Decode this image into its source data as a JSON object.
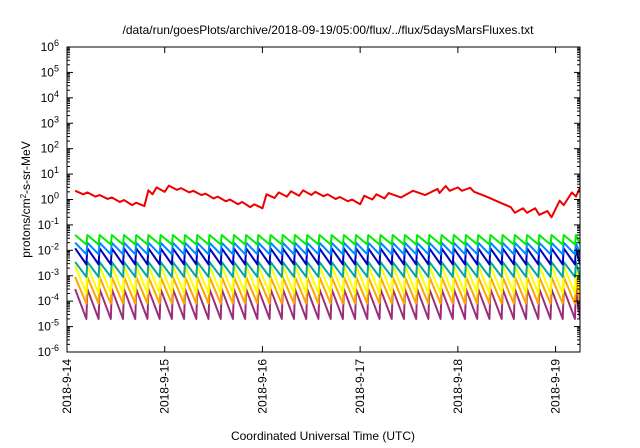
{
  "chart_data": {
    "type": "line",
    "title": "/data/run/goesPlots/archive/2018-09-19/05:00/flux/../flux/5daysMarsFluxes.txt",
    "xlabel": "Coordinated Universal Time (UTC)",
    "ylabel_parts": {
      "prefix": "protons/cm",
      "sup": "2",
      "suffix": "-s-sr-MeV"
    },
    "y_scale": "log",
    "ylim": [
      1e-06,
      1000000.0
    ],
    "y_ticks": [
      {
        "base": "10",
        "exp": "-6",
        "value": 1e-06
      },
      {
        "base": "10",
        "exp": "-5",
        "value": 1e-05
      },
      {
        "base": "10",
        "exp": "-4",
        "value": 0.0001
      },
      {
        "base": "10",
        "exp": "-3",
        "value": 0.001
      },
      {
        "base": "10",
        "exp": "-2",
        "value": 0.01
      },
      {
        "base": "10",
        "exp": "-1",
        "value": 0.1
      },
      {
        "base": "10",
        "exp": "0",
        "value": 1
      },
      {
        "base": "10",
        "exp": "1",
        "value": 10
      },
      {
        "base": "10",
        "exp": "2",
        "value": 100
      },
      {
        "base": "10",
        "exp": "3",
        "value": 1000
      },
      {
        "base": "10",
        "exp": "4",
        "value": 10000
      },
      {
        "base": "10",
        "exp": "5",
        "value": 100000
      },
      {
        "base": "10",
        "exp": "6",
        "value": 1000000
      }
    ],
    "xlim": [
      "2018-09-14T00:00",
      "2018-09-19T06:00"
    ],
    "x_ticks": [
      {
        "label": "2018-9-14",
        "date": "2018-09-14T00:00"
      },
      {
        "label": "2018-9-15",
        "date": "2018-09-15T00:00"
      },
      {
        "label": "2018-9-16",
        "date": "2018-09-16T00:00"
      },
      {
        "label": "2018-9-17",
        "date": "2018-09-17T00:00"
      },
      {
        "label": "2018-9-18",
        "date": "2018-09-18T00:00"
      },
      {
        "label": "2018-9-19",
        "date": "2018-09-19T00:00"
      }
    ],
    "grid": false,
    "legend": "none",
    "series": [
      {
        "color": "#ee0000",
        "x": [
          "2018-09-14T02:00",
          "2018-09-14T04:00",
          "2018-09-14T05:00",
          "2018-09-14T07:00",
          "2018-09-14T08:00",
          "2018-09-14T10:00",
          "2018-09-14T11:00",
          "2018-09-14T13:00",
          "2018-09-14T14:00",
          "2018-09-14T16:00",
          "2018-09-14T17:00",
          "2018-09-14T19:00",
          "2018-09-14T20:00",
          "2018-09-14T21:00",
          "2018-09-14T22:00",
          "2018-09-15T00:00",
          "2018-09-15T01:00",
          "2018-09-15T03:00",
          "2018-09-15T04:00",
          "2018-09-15T06:00",
          "2018-09-15T07:00",
          "2018-09-15T09:00",
          "2018-09-15T10:00",
          "2018-09-15T12:00",
          "2018-09-15T13:00",
          "2018-09-15T15:00",
          "2018-09-15T16:00",
          "2018-09-15T18:00",
          "2018-09-15T19:00",
          "2018-09-15T21:00",
          "2018-09-15T22:00",
          "2018-09-16T00:00",
          "2018-09-16T01:00",
          "2018-09-16T03:00",
          "2018-09-16T04:00",
          "2018-09-16T06:00",
          "2018-09-16T07:00",
          "2018-09-16T09:00",
          "2018-09-16T10:00",
          "2018-09-16T12:00",
          "2018-09-16T13:00",
          "2018-09-16T15:00",
          "2018-09-16T16:00",
          "2018-09-16T18:00",
          "2018-09-16T19:00",
          "2018-09-16T21:00",
          "2018-09-16T22:00",
          "2018-09-17T00:00",
          "2018-09-17T01:00",
          "2018-09-17T03:00",
          "2018-09-17T04:00",
          "2018-09-17T06:00",
          "2018-09-17T07:00",
          "2018-09-17T10:00",
          "2018-09-17T13:00",
          "2018-09-17T16:00",
          "2018-09-17T19:00",
          "2018-09-17T19:30",
          "2018-09-17T21:00",
          "2018-09-17T22:00",
          "2018-09-18T00:00",
          "2018-09-18T01:00",
          "2018-09-18T03:00",
          "2018-09-18T04:00",
          "2018-09-18T07:00",
          "2018-09-18T10:00",
          "2018-09-18T13:00",
          "2018-09-18T14:00",
          "2018-09-18T16:00",
          "2018-09-18T17:00",
          "2018-09-18T19:00",
          "2018-09-18T20:00",
          "2018-09-18T22:00",
          "2018-09-18T23:00",
          "2018-09-19T01:00",
          "2018-09-19T02:00",
          "2018-09-19T04:00",
          "2018-09-19T05:00",
          "2018-09-19T06:00"
        ],
        "y": [
          2.2,
          1.6,
          1.9,
          1.3,
          1.5,
          1.05,
          1.2,
          0.8,
          0.95,
          0.6,
          0.75,
          0.55,
          2.3,
          1.6,
          3.0,
          2.0,
          3.5,
          2.4,
          2.8,
          1.9,
          2.2,
          1.5,
          1.7,
          1.1,
          1.3,
          0.85,
          1.0,
          0.65,
          0.8,
          0.5,
          0.65,
          0.45,
          1.6,
          1.15,
          1.9,
          1.3,
          2.1,
          1.4,
          2.3,
          1.5,
          2.0,
          1.35,
          1.6,
          1.05,
          1.25,
          0.85,
          1.0,
          0.65,
          1.4,
          1.0,
          1.6,
          1.1,
          1.8,
          1.2,
          2.2,
          1.5,
          2.6,
          1.8,
          3.4,
          2.2,
          3.0,
          2.2,
          2.9,
          2.0,
          1.3,
          0.8,
          0.5,
          0.3,
          0.45,
          0.3,
          0.45,
          0.25,
          0.35,
          0.2,
          0.9,
          0.6,
          1.9,
          1.3,
          3.0
        ]
      },
      {
        "color": "#00ee00",
        "sawtooth": {
          "period_hours": 3,
          "high": 0.04,
          "low": 0.017
        }
      },
      {
        "color": "#0088ff",
        "sawtooth": {
          "period_hours": 3,
          "high": 0.02,
          "low": 0.007
        }
      },
      {
        "color": "#0000bb",
        "sawtooth": {
          "period_hours": 3,
          "high": 0.012,
          "low": 0.0028
        }
      },
      {
        "color": "#00a8a0",
        "sawtooth": {
          "period_hours": 3,
          "high": 0.0035,
          "low": 0.0009
        }
      },
      {
        "color": "#ffff00",
        "sawtooth": {
          "period_hours": 3,
          "high": 0.0025,
          "low": 0.0002
        }
      },
      {
        "color": "#ffa500",
        "sawtooth": {
          "period_hours": 3,
          "high": 0.0009,
          "low": 8e-05
        }
      },
      {
        "color": "#9b2d7a",
        "sawtooth": {
          "period_hours": 3,
          "high": 0.0003,
          "low": 2e-05
        }
      }
    ]
  }
}
